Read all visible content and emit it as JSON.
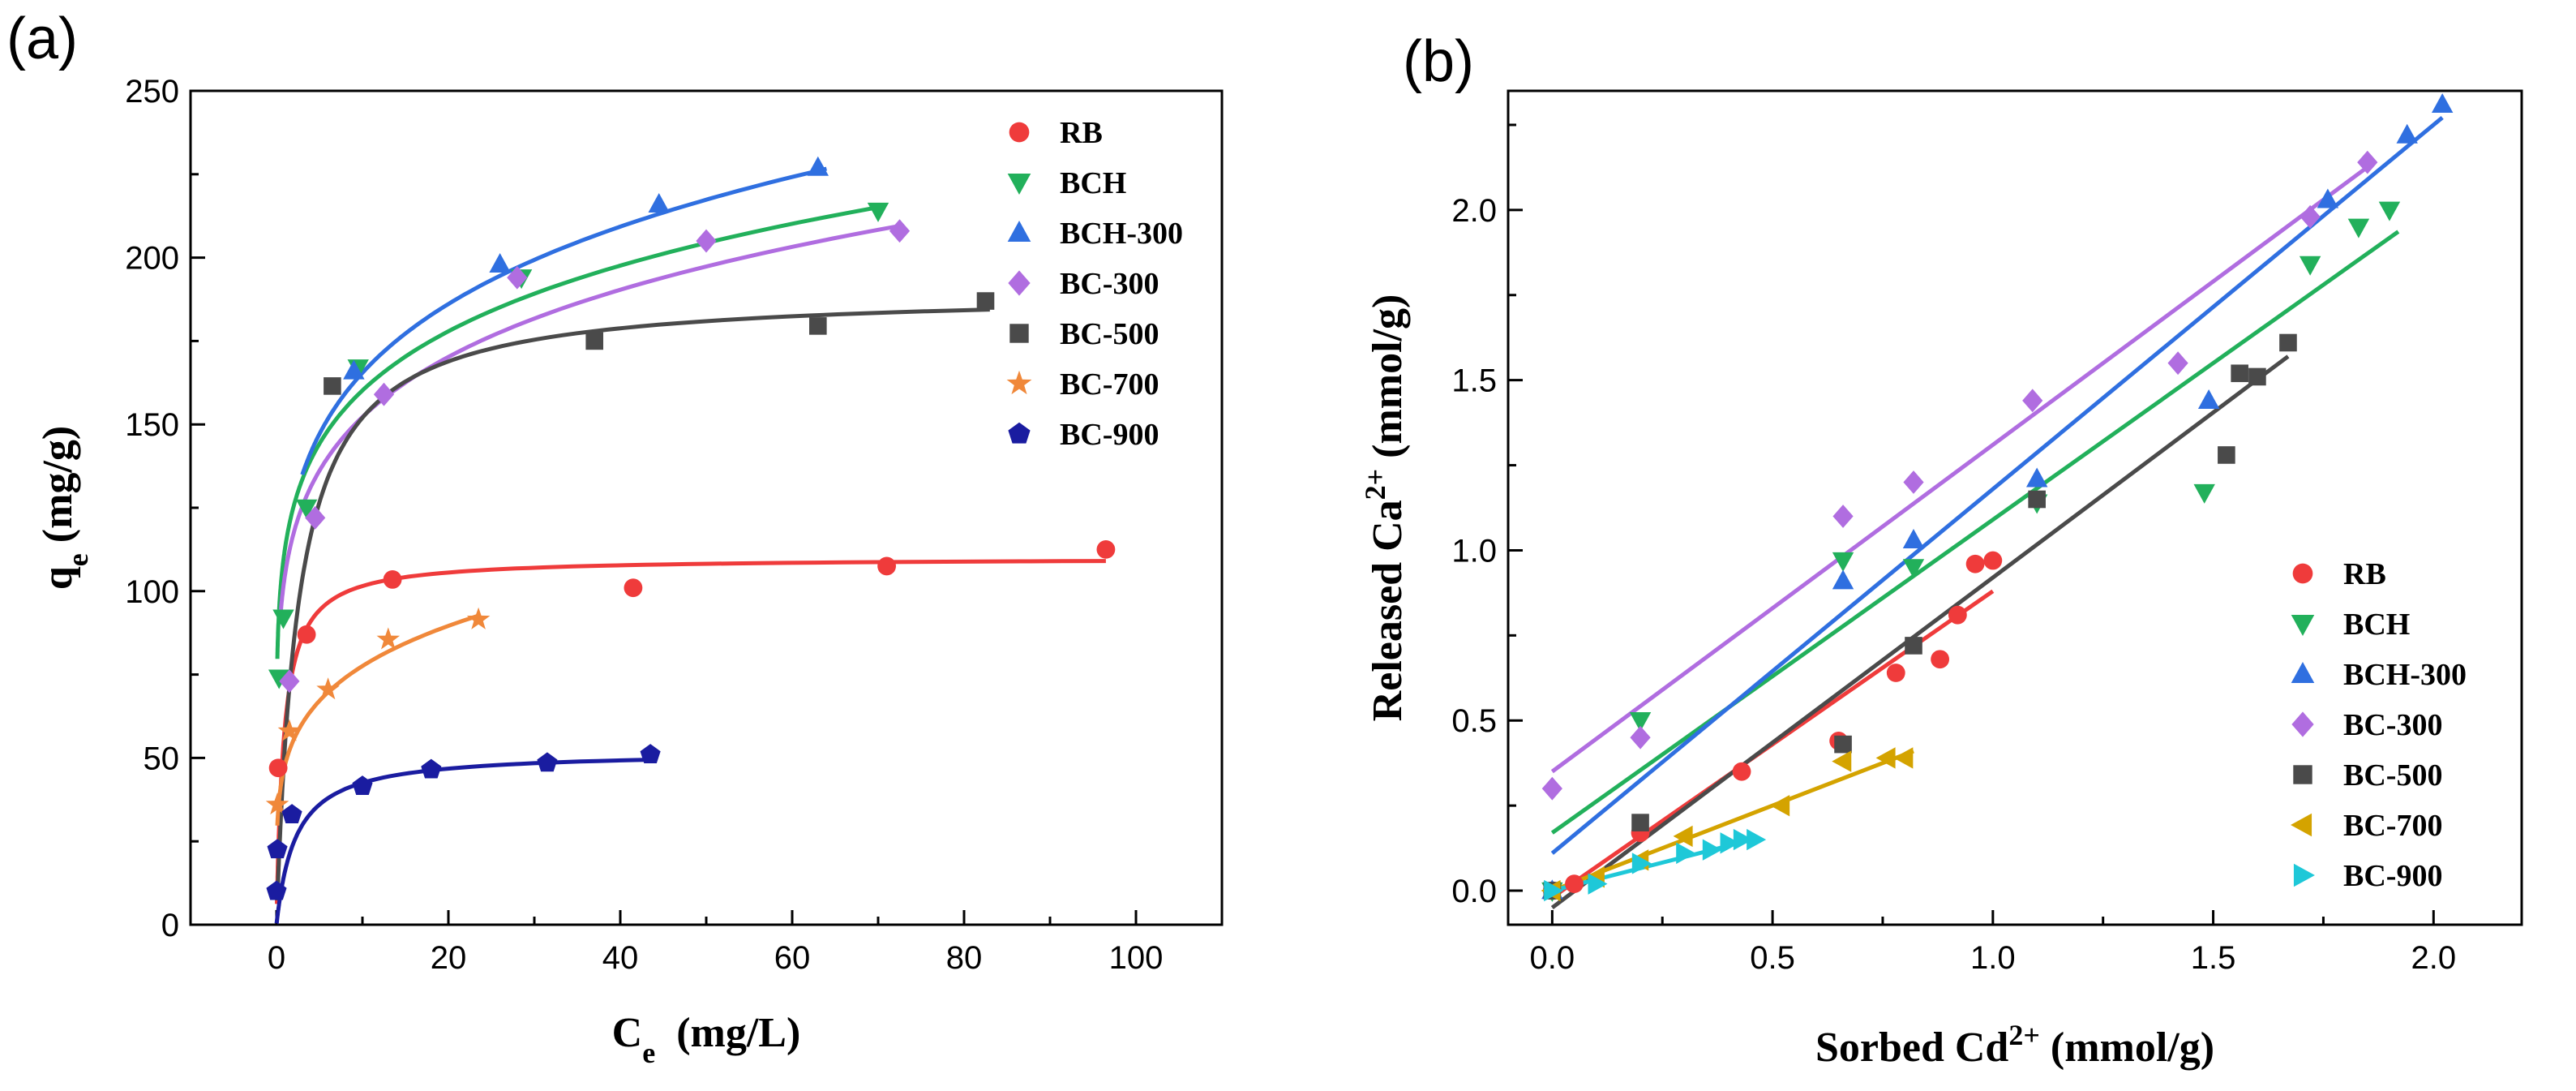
{
  "chart_data": [
    {
      "type": "scatter",
      "panel_label": "(a)",
      "ylabel_main": "q",
      "ylabel_sub": "e",
      "ylabel_rest": " (mg/g)",
      "xlabel_main": "C",
      "xlabel_sub": "e",
      "xlabel_rest": "  (mg/L)",
      "xlim": [
        -10,
        110
      ],
      "ylim": [
        0,
        250
      ],
      "xticks": [
        0,
        20,
        40,
        60,
        80,
        100
      ],
      "yticks": [
        0,
        50,
        100,
        150,
        200,
        250
      ],
      "xminor": [
        -10,
        10,
        30,
        50,
        70,
        90,
        110
      ],
      "yminor": [
        25,
        75,
        125,
        175,
        225
      ],
      "grid": false,
      "legend_position": "top-right",
      "series": [
        {
          "name": "RB",
          "color": "#ef3b3b",
          "marker": "circle",
          "x": [
            0.2,
            3.5,
            13.5,
            41.5,
            71,
            96.5
          ],
          "y": [
            47,
            87,
            103.5,
            101,
            107.5,
            112.5
          ],
          "fit": {
            "model": "langmuir",
            "qmax": 110,
            "K": 1.2,
            "xmin": 0.05,
            "xmax": 96.5
          }
        },
        {
          "name": "BCH",
          "color": "#22b05b",
          "marker": "triangle-down",
          "x": [
            0.3,
            0.8,
            3.5,
            9.5,
            28.5,
            70
          ],
          "y": [
            74,
            92,
            125,
            167,
            194,
            214
          ],
          "fit": {
            "model": "freundlich",
            "Kf": 113,
            "n": 6.6,
            "xmin": 0.1,
            "xmax": 70
          }
        },
        {
          "name": "BCH-300",
          "color": "#2f6fe0",
          "marker": "triangle-up",
          "x": [
            9,
            26,
            44.5,
            63
          ],
          "y": [
            166,
            198,
            216,
            227
          ],
          "fit": {
            "model": "freundlich",
            "Kf": 112,
            "n": 5.9,
            "xmin": 3,
            "xmax": 64
          }
        },
        {
          "name": "BC-300",
          "color": "#b06de0",
          "marker": "diamond",
          "x": [
            1.5,
            4.5,
            12.5,
            28,
            50,
            72.5
          ],
          "y": [
            73,
            122,
            159,
            194,
            205,
            208
          ],
          "fit": {
            "model": "freundlich",
            "Kf": 105,
            "n": 6.2,
            "xmin": 0.5,
            "xmax": 72
          }
        },
        {
          "name": "BC-500",
          "color": "#4a4a4a",
          "marker": "square",
          "x": [
            6.5,
            37,
            63,
            82.5
          ],
          "y": [
            161.5,
            175,
            179.5,
            187
          ],
          "fit": {
            "model": "langmuir",
            "qmax": 190,
            "K": 0.4,
            "xmin": 0.1,
            "xmax": 83
          }
        },
        {
          "name": "BC-700",
          "color": "#f0883a",
          "marker": "star",
          "x": [
            0.1,
            1.5,
            6,
            13,
            23.5
          ],
          "y": [
            36,
            58,
            70.5,
            85.5,
            91.5
          ],
          "fit": {
            "model": "freundlich",
            "Kf": 48,
            "n": 4.8,
            "xmin": 0.1,
            "xmax": 23.5
          }
        },
        {
          "name": "BC-900",
          "color": "#1a1ca0",
          "marker": "pentagon",
          "x": [
            0,
            0.1,
            1.8,
            10,
            18,
            31.5,
            43.5
          ],
          "y": [
            10,
            22.5,
            33,
            41.5,
            46.5,
            48.5,
            51
          ],
          "fit": {
            "model": "langmuir",
            "qmax": 52,
            "K": 0.45,
            "xmin": 0.02,
            "xmax": 44
          }
        }
      ]
    },
    {
      "type": "scatter",
      "panel_label": "(b)",
      "ylabel_main": "Released Ca",
      "ylabel_sup": "2+",
      "ylabel_rest": " (mmol/g)",
      "xlabel_main": "Sorbed Cd",
      "xlabel_sup": "2+",
      "xlabel_rest": " (mmol/g)",
      "xlim": [
        -0.1,
        2.2
      ],
      "ylim": [
        -0.1,
        2.35
      ],
      "xticks": [
        0.0,
        0.5,
        1.0,
        1.5,
        2.0
      ],
      "xticklabels": [
        "0.0",
        "0.5",
        "1.0",
        "1.5",
        "2.0"
      ],
      "yticks": [
        0.0,
        0.5,
        1.0,
        1.5,
        2.0
      ],
      "yticklabels": [
        "0.0",
        "0.5",
        "1.0",
        "1.5",
        "2.0"
      ],
      "xminor": [
        0.25,
        0.75,
        1.25,
        1.75
      ],
      "yminor": [
        0.25,
        0.75,
        1.25,
        1.75,
        2.25
      ],
      "grid": false,
      "legend_position": "bottom-right",
      "series": [
        {
          "name": "RB",
          "color": "#ef3b3b",
          "marker": "circle",
          "x": [
            0.0,
            0.05,
            0.2,
            0.43,
            0.65,
            0.78,
            0.88,
            0.92,
            0.96,
            1.0
          ],
          "y": [
            0.0,
            0.02,
            0.17,
            0.35,
            0.44,
            0.64,
            0.68,
            0.81,
            0.96,
            0.97
          ],
          "fit": {
            "slope": 0.9,
            "intercept": -0.02,
            "xmin": 0,
            "xmax": 1.0
          }
        },
        {
          "name": "BCH",
          "color": "#22b05b",
          "marker": "triangle-down",
          "x": [
            0.0,
            0.2,
            0.66,
            0.82,
            1.1,
            1.48,
            1.72,
            1.83,
            1.9
          ],
          "y": [
            0.0,
            0.5,
            0.97,
            0.95,
            1.14,
            1.17,
            1.84,
            1.95,
            2.0
          ],
          "fit": {
            "slope": 0.92,
            "intercept": 0.17,
            "xmin": 0,
            "xmax": 1.92
          }
        },
        {
          "name": "BCH-300",
          "color": "#2f6fe0",
          "marker": "triangle-up",
          "x": [
            0.0,
            0.66,
            0.82,
            1.1,
            1.49,
            1.76,
            1.94,
            2.02
          ],
          "y": [
            0.0,
            0.91,
            1.03,
            1.21,
            1.44,
            2.03,
            2.22,
            2.31
          ],
          "fit": {
            "slope": 1.07,
            "intercept": 0.11,
            "xmin": 0,
            "xmax": 2.02
          }
        },
        {
          "name": "BC-300",
          "color": "#b06de0",
          "marker": "diamond",
          "x": [
            0.0,
            0.2,
            0.66,
            0.82,
            1.09,
            1.42,
            1.72,
            1.85
          ],
          "y": [
            0.3,
            0.45,
            1.1,
            1.2,
            1.44,
            1.55,
            1.98,
            2.14
          ],
          "fit": {
            "slope": 0.96,
            "intercept": 0.35,
            "xmin": 0,
            "xmax": 1.85
          }
        },
        {
          "name": "BC-500",
          "color": "#4a4a4a",
          "marker": "square",
          "x": [
            0.0,
            0.2,
            0.66,
            0.82,
            1.1,
            1.53,
            1.56,
            1.6,
            1.67
          ],
          "y": [
            0.0,
            0.2,
            0.43,
            0.72,
            1.15,
            1.28,
            1.52,
            1.51,
            1.61
          ],
          "fit": {
            "slope": 0.97,
            "intercept": -0.05,
            "xmin": 0,
            "xmax": 1.67
          }
        },
        {
          "name": "BC-700",
          "color": "#d4a300",
          "marker": "triangle-left",
          "x": [
            0.0,
            0.1,
            0.2,
            0.3,
            0.52,
            0.66,
            0.76,
            0.8
          ],
          "y": [
            0.0,
            0.04,
            0.09,
            0.16,
            0.25,
            0.38,
            0.39,
            0.39
          ],
          "fit": {
            "slope": 0.5,
            "intercept": 0.0,
            "xmin": 0,
            "xmax": 0.82
          }
        },
        {
          "name": "BC-900",
          "color": "#1ec8d8",
          "marker": "triangle-right",
          "x": [
            0.0,
            0.1,
            0.2,
            0.3,
            0.36,
            0.4,
            0.43,
            0.46
          ],
          "y": [
            0.0,
            0.02,
            0.08,
            0.11,
            0.12,
            0.14,
            0.15,
            0.15
          ],
          "fit": {
            "slope": 0.33,
            "intercept": 0.0,
            "xmin": 0,
            "xmax": 0.46
          }
        }
      ]
    }
  ]
}
